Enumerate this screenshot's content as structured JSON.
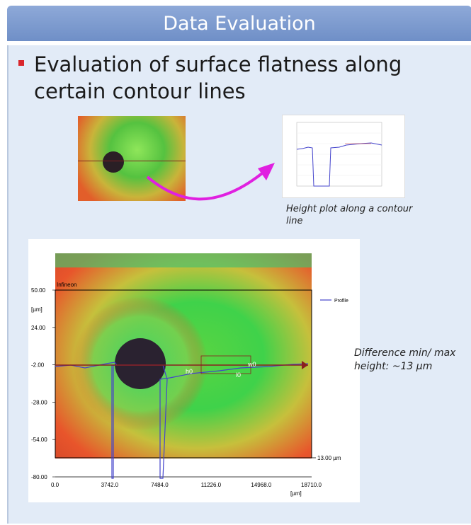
{
  "slide": {
    "title": "Data Evaluation",
    "bullet": "Evaluation of surface flatness along certain contour lines"
  },
  "height_plot_caption": "Height plot along a contour line",
  "annotation": "Difference min/ max height: ~13 µm",
  "main_plot": {
    "company": "Infineon",
    "y_unit": "[µm]",
    "x_unit": "[µm]",
    "legend_label": "Profile",
    "y_ticks": [
      "50.00",
      "24.00",
      "-2.00",
      "-28.00",
      "-54.00",
      "-80.00"
    ],
    "x_ticks": [
      "0.0",
      "3742.0",
      "7484.0",
      "11226.0",
      "14968.0",
      "18710.0"
    ],
    "marker_labels": [
      "h0",
      "l0",
      "w0"
    ],
    "scale_label": "13.00 µm"
  },
  "colors": {
    "title_bar": "#7f9fd2",
    "panel": "#e2ebf7",
    "bullet": "#d9262c",
    "arrow": "#e020e0",
    "profile_line": "#4444cc",
    "contour_line": "#8a1f1f"
  }
}
